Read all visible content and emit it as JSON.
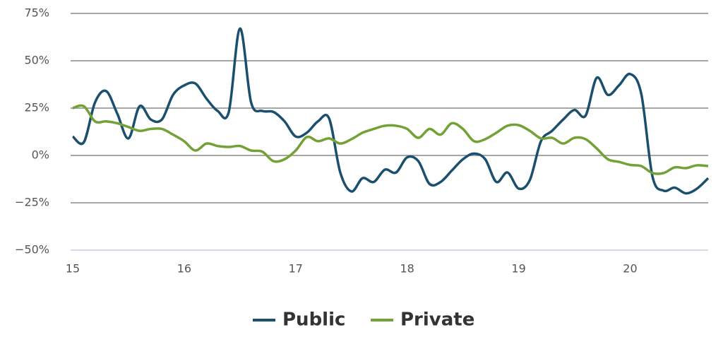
{
  "chart_data": {
    "type": "line",
    "x": [
      15.0,
      15.1,
      15.2,
      15.3,
      15.4,
      15.5,
      15.6,
      15.7,
      15.8,
      15.9,
      16.0,
      16.1,
      16.2,
      16.3,
      16.4,
      16.5,
      16.6,
      16.7,
      16.8,
      16.9,
      17.0,
      17.1,
      17.2,
      17.3,
      17.4,
      17.5,
      17.6,
      17.7,
      17.8,
      17.9,
      18.0,
      18.1,
      18.2,
      18.3,
      18.4,
      18.5,
      18.6,
      18.7,
      18.8,
      18.9,
      19.0,
      19.1,
      19.2,
      19.3,
      19.4,
      19.5,
      19.6,
      19.7,
      19.8,
      19.9,
      20.0,
      20.1,
      20.2,
      20.3,
      20.4,
      20.5,
      20.6,
      20.7
    ],
    "series": [
      {
        "name": "Public",
        "color": "#1b4f6e",
        "values": [
          10,
          7,
          28,
          34,
          22,
          9,
          26,
          19,
          19,
          32,
          37,
          38,
          30,
          23.5,
          23,
          67,
          28,
          23.5,
          23,
          18,
          10,
          12,
          18,
          19.5,
          -9,
          -19,
          -12,
          -14,
          -7.5,
          -9,
          -1,
          -3,
          -15,
          -14,
          -8,
          -2,
          1,
          -2,
          -14,
          -9,
          -17.5,
          -13,
          7.5,
          13,
          19,
          24,
          21,
          41,
          32,
          37,
          43,
          32.5,
          -11,
          -18.6,
          -17,
          -20,
          -17.5,
          -12
        ]
      },
      {
        "name": "Private",
        "color": "#72a236",
        "values": [
          25,
          26,
          18,
          18,
          17,
          15,
          13,
          14,
          14,
          11,
          7.5,
          2.6,
          6.3,
          5,
          4.5,
          5,
          2.6,
          2,
          -3,
          -2,
          2.6,
          9.7,
          7.5,
          9,
          6.3,
          8.6,
          12,
          14,
          15.7,
          15.7,
          14,
          9.3,
          14,
          11,
          17,
          14,
          7.5,
          8.6,
          12,
          15.7,
          16,
          13,
          9,
          9.3,
          6.3,
          9.3,
          8.6,
          3.7,
          -2,
          -3.4,
          -5,
          -5.6,
          -9.3,
          -9.3,
          -6.3,
          -6.7,
          -5.2,
          -5.6
        ]
      }
    ],
    "xlim": [
      15,
      20.7
    ],
    "xticks": [
      15,
      16,
      17,
      18,
      19,
      20
    ],
    "ylim": [
      -50,
      75
    ],
    "yticks": [
      {
        "value": -50,
        "label": "−50%"
      },
      {
        "value": -25,
        "label": "−25%"
      },
      {
        "value": 0,
        "label": "0%"
      },
      {
        "value": 25,
        "label": "25%"
      },
      {
        "value": 50,
        "label": "50%"
      },
      {
        "value": 75,
        "label": "75%"
      }
    ],
    "grid": true,
    "legend": "bottom"
  }
}
